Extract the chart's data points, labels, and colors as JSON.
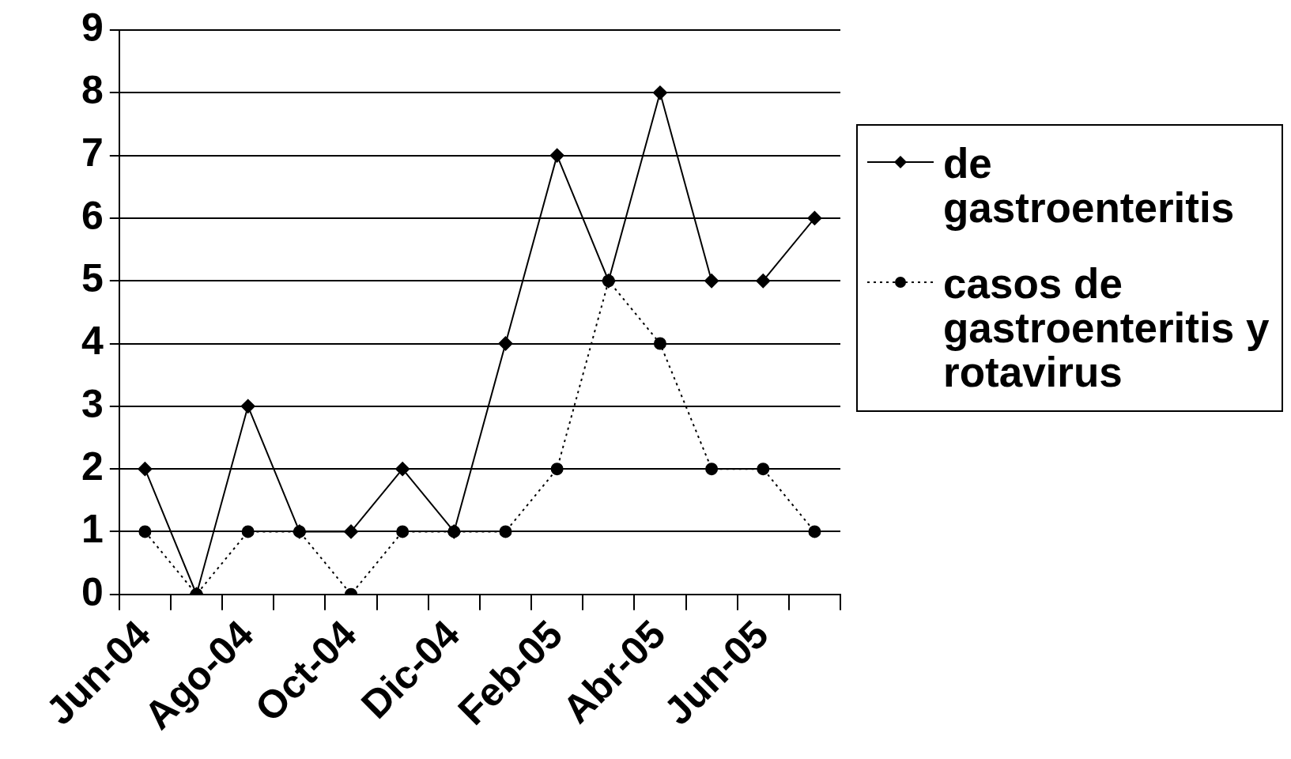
{
  "chart_data": {
    "type": "line",
    "categories": [
      "Jun-04",
      null,
      "Ago-04",
      null,
      "Oct-04",
      null,
      "Dic-04",
      null,
      "Feb-05",
      null,
      "Abr-05",
      null,
      "Jun-05",
      null
    ],
    "series": [
      {
        "name": "de gastroenteritis",
        "color": "#000000",
        "marker": "diamond",
        "line_style": "solid",
        "values": [
          2,
          0,
          3,
          1,
          1,
          2,
          1,
          4,
          7,
          5,
          8,
          5,
          5,
          6
        ]
      },
      {
        "name": "casos de gastroenteritis y rotavirus",
        "color": "#000000",
        "marker": "circle",
        "line_style": "dotted",
        "values": [
          1,
          0,
          1,
          1,
          0,
          1,
          1,
          1,
          2,
          5,
          4,
          2,
          2,
          1
        ]
      }
    ],
    "ylim": [
      0,
      9
    ],
    "yticks": [
      0,
      1,
      2,
      3,
      4,
      5,
      6,
      7,
      8,
      9
    ],
    "grid": "y",
    "legend": "right"
  }
}
